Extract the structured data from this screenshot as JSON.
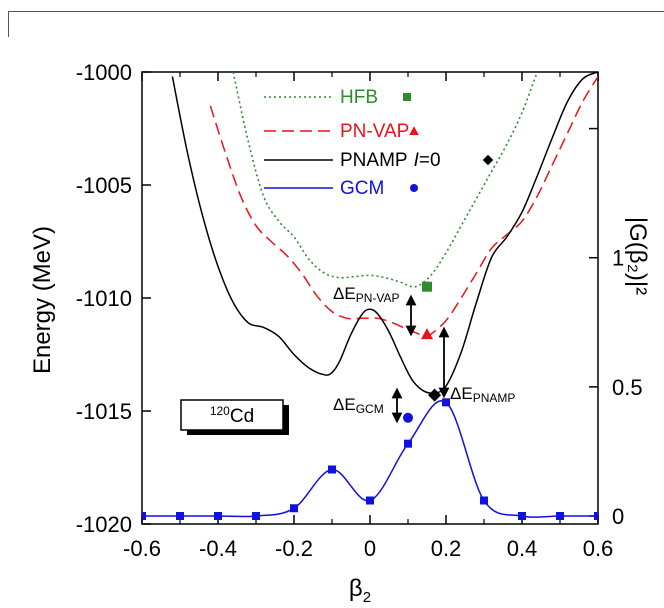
{
  "chart_data": {
    "type": "line",
    "xlabel": "β",
    "xlabel_sub": "2",
    "ylabel": "Energy (MeV)",
    "ylabel_right": "|G(β₂)|²",
    "xlim": [
      -0.6,
      0.6
    ],
    "ylim": [
      -1020,
      -1000
    ],
    "ylim_right": [
      0,
      1.75
    ],
    "x_ticks": [
      "-0.6",
      "-0.4",
      "-0.2",
      "0",
      "0.2",
      "0.4",
      "0.6"
    ],
    "y_ticks": [
      "-1000",
      "-1005",
      "-1010",
      "-1015",
      "-1020"
    ],
    "y_ticks_right": [
      "0",
      "0.5",
      "1"
    ],
    "legend": [
      {
        "label": "HFB",
        "color": "#2e8b2e",
        "style": "dotted",
        "marker": "square"
      },
      {
        "label": "PN-VAP",
        "color": "#e8141a",
        "style": "dashed",
        "marker": "triangle"
      },
      {
        "label": "PNAMP",
        "label_italic": "I",
        "label_tail": "=0",
        "color": "#000000",
        "style": "solid",
        "marker": "diamond"
      },
      {
        "label": "GCM",
        "color": "#1010e0",
        "style": "solid",
        "marker": "circle"
      }
    ],
    "series": [
      {
        "name": "HFB",
        "color": "#2e8b2e",
        "x": [
          -0.36,
          -0.32,
          -0.28,
          -0.24,
          -0.2,
          -0.16,
          -0.12,
          -0.08,
          -0.04,
          0,
          0.04,
          0.08,
          0.12,
          0.16,
          0.2,
          0.24,
          0.28,
          0.32,
          0.36,
          0.4,
          0.44
        ],
        "y": [
          -1000,
          -1003.1,
          -1005.5,
          -1006.6,
          -1007.3,
          -1008.3,
          -1008.9,
          -1009.1,
          -1009.05,
          -1009.0,
          -1009.1,
          -1009.3,
          -1009.5,
          -1009.0,
          -1008.0,
          -1006.8,
          -1005.6,
          -1004.4,
          -1003.2,
          -1001.8,
          -1000
        ]
      },
      {
        "name": "PN-VAP",
        "color": "#e8141a",
        "x": [
          -0.42,
          -0.38,
          -0.34,
          -0.3,
          -0.26,
          -0.22,
          -0.18,
          -0.14,
          -0.1,
          -0.06,
          -0.02,
          0.02,
          0.06,
          0.1,
          0.14,
          0.16,
          0.2,
          0.24,
          0.28,
          0.32,
          0.36,
          0.4,
          0.44,
          0.48,
          0.52,
          0.56,
          0.6
        ],
        "y": [
          -1001.5,
          -1003.6,
          -1005.5,
          -1006.8,
          -1007.5,
          -1008.1,
          -1008.9,
          -1009.9,
          -1010.6,
          -1010.9,
          -1010.9,
          -1010.9,
          -1011.1,
          -1011.4,
          -1011.65,
          -1011.6,
          -1011.0,
          -1010.0,
          -1008.9,
          -1007.8,
          -1007.2,
          -1006.6,
          -1005.5,
          -1004.1,
          -1002.7,
          -1001.3,
          -1000.2
        ]
      },
      {
        "name": "PNAMP",
        "color": "#000000",
        "x": [
          -0.52,
          -0.48,
          -0.44,
          -0.4,
          -0.36,
          -0.32,
          -0.28,
          -0.24,
          -0.2,
          -0.16,
          -0.12,
          -0.1,
          -0.08,
          -0.05,
          -0.02,
          0,
          0.02,
          0.05,
          0.08,
          0.11,
          0.14,
          0.17,
          0.2,
          0.24,
          0.28,
          0.32,
          0.36,
          0.4,
          0.44,
          0.48,
          0.52,
          0.56,
          0.6
        ],
        "y": [
          -1000.2,
          -1003.6,
          -1006.4,
          -1008.6,
          -1010.2,
          -1011.1,
          -1011.3,
          -1011.7,
          -1012.5,
          -1013.1,
          -1013.4,
          -1013.3,
          -1012.8,
          -1011.6,
          -1010.7,
          -1010.5,
          -1010.7,
          -1011.5,
          -1012.6,
          -1013.6,
          -1014.1,
          -1014.2,
          -1013.9,
          -1012.4,
          -1010.2,
          -1008.2,
          -1007.3,
          -1006.2,
          -1004.6,
          -1002.9,
          -1001.3,
          -1000.3,
          -1000
        ]
      },
      {
        "name": "GCM",
        "color": "#1010e0",
        "axis": "right",
        "x": [
          -0.6,
          -0.5,
          -0.4,
          -0.3,
          -0.2,
          -0.1,
          0,
          0.1,
          0.2,
          0.3,
          0.4,
          0.5,
          0.6
        ],
        "y": [
          0.0,
          0.0,
          0.0,
          0.0,
          0.03,
          0.18,
          0.06,
          0.28,
          0.44,
          0.06,
          0.0,
          0.0,
          0.0
        ],
        "markers": true
      }
    ],
    "points": [
      {
        "name": "HFB",
        "marker": "square",
        "color": "#2e8b2e",
        "x": 0.15,
        "y": -1009.5
      },
      {
        "name": "PN-VAP",
        "marker": "triangle",
        "color": "#e8141a",
        "x": 0.15,
        "y": -1011.6
      },
      {
        "name": "PNAMP",
        "marker": "diamond",
        "color": "#000000",
        "x": 0.17,
        "y": -1014.3
      },
      {
        "name": "GCM",
        "marker": "circle",
        "color": "#1010e0",
        "x": 0.1,
        "y": -1015.3
      }
    ],
    "annotations": {
      "nucleus_mass": "120",
      "nucleus_symbol": "Cd",
      "delta_pnvap_main": "ΔE",
      "delta_pnvap_sub": "PN-VAP",
      "delta_pnamp_main": "ΔE",
      "delta_pnamp_sub": "PNAMP",
      "delta_gcm_main": "ΔE",
      "delta_gcm_sub": "GCM"
    },
    "grid": false,
    "legend_position": "top-center"
  }
}
